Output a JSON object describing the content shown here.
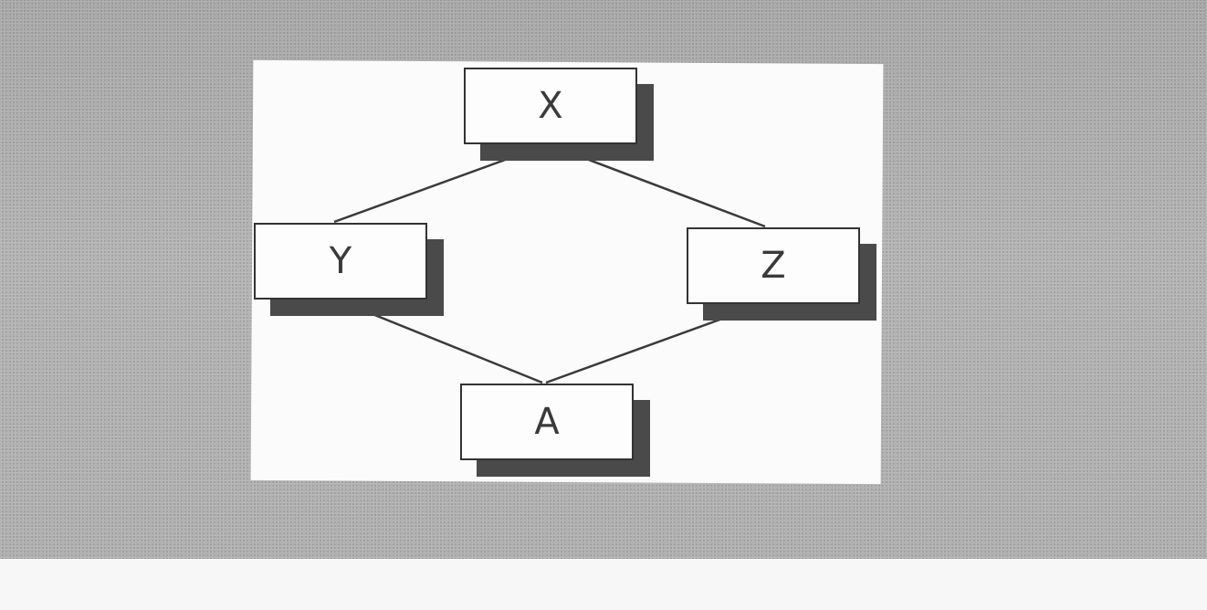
{
  "diagram": {
    "nodes": [
      {
        "id": "x",
        "label": "X"
      },
      {
        "id": "y",
        "label": "Y"
      },
      {
        "id": "z",
        "label": "Z"
      },
      {
        "id": "a",
        "label": "A"
      }
    ],
    "edges": [
      {
        "from": "X",
        "to": "Y"
      },
      {
        "from": "X",
        "to": "Z"
      },
      {
        "from": "Y",
        "to": "A"
      },
      {
        "from": "Z",
        "to": "A"
      }
    ]
  },
  "colors": {
    "backdrop": "#a9a9a9",
    "panel": "#fbfbfb",
    "node_fill": "#fdfdfd",
    "node_border": "#333333",
    "node_shadow": "#4a4a4a",
    "edge": "#3a3a3a"
  }
}
